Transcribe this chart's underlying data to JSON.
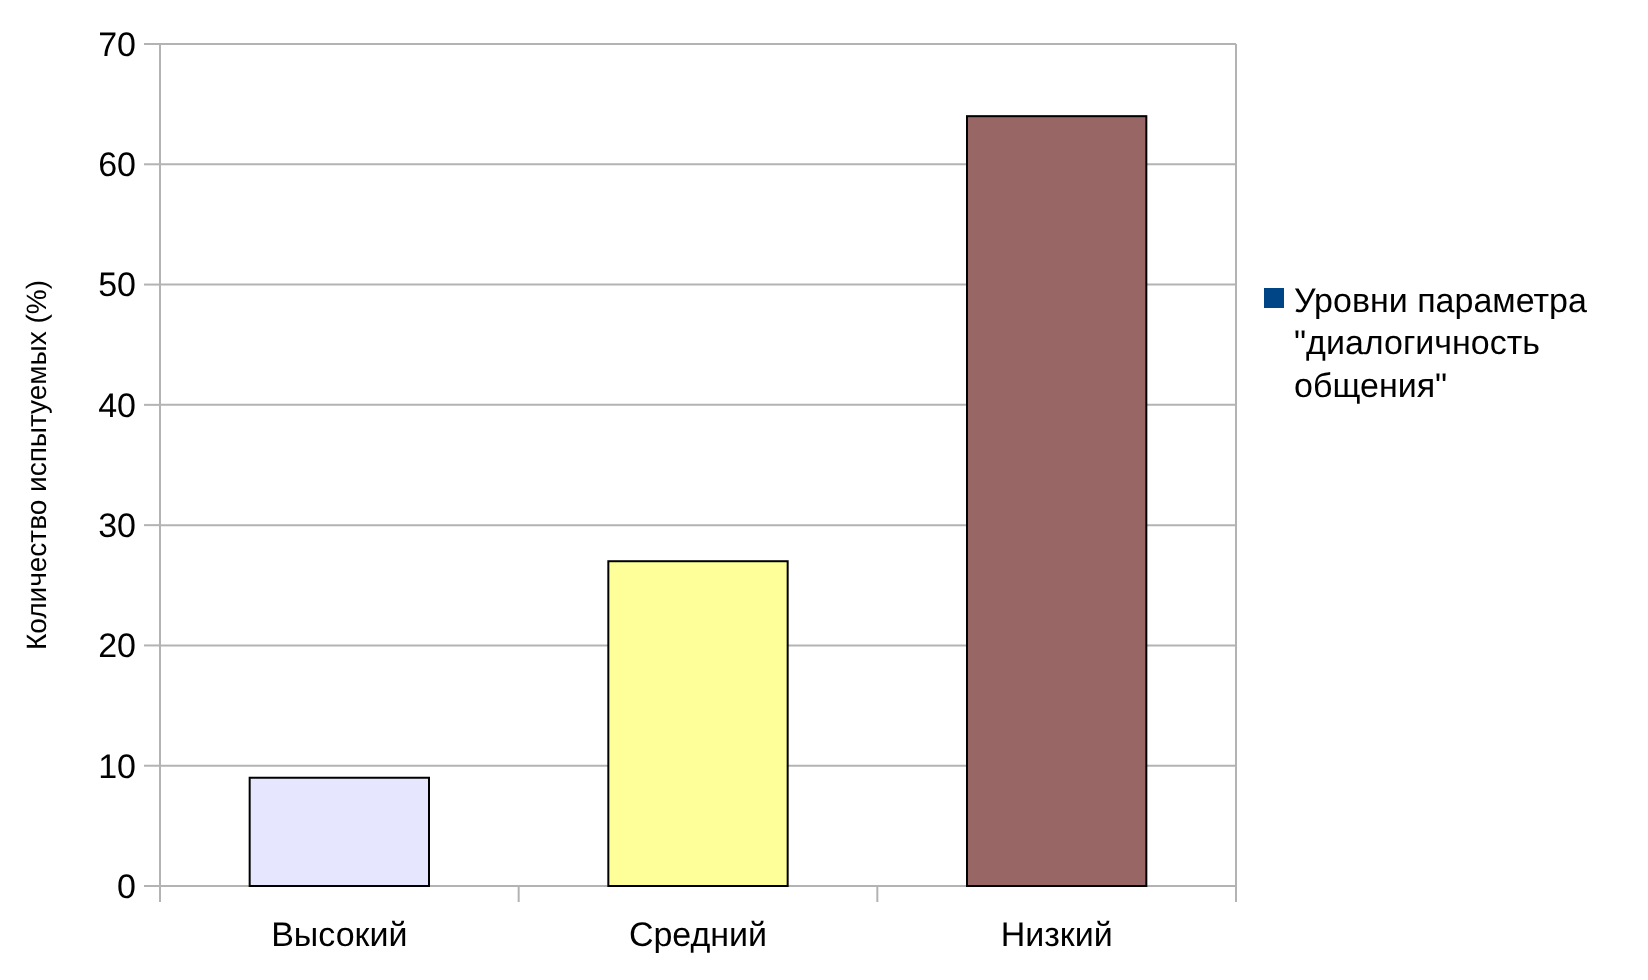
{
  "chart_data": {
    "type": "bar",
    "ylabel": "Количество испытуемых (%)",
    "categories": [
      "Высокий",
      "Средний",
      "Низкий"
    ],
    "series": [
      {
        "name": "Уровни параметра \"диалогичность общения\"",
        "color": "#004586",
        "colors": [
          "#e6e6ff",
          "#ffff99",
          "#996666"
        ],
        "values": [
          9,
          27,
          64
        ]
      }
    ],
    "ylim": [
      0,
      70
    ],
    "yticks": [
      0,
      10,
      20,
      30,
      40,
      50,
      60,
      70
    ],
    "grid": "y",
    "legend": "right"
  }
}
